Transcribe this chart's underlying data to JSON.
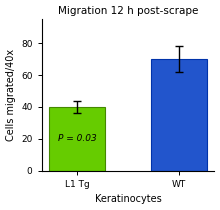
{
  "title": "Migration 12 h post-scrape",
  "xlabel": "Keratinocytes",
  "ylabel": "Cells migrated/40x",
  "categories": [
    "L1 Tg",
    "WT"
  ],
  "values": [
    40,
    70
  ],
  "errors": [
    4,
    8
  ],
  "bar_colors": [
    "#66cc00",
    "#2255cc"
  ],
  "bar_edgecolors": [
    "#448800",
    "#0033aa"
  ],
  "pvalue_text": "P = 0.03",
  "ylim": [
    0,
    95
  ],
  "yticks": [
    0,
    20,
    40,
    60,
    80
  ],
  "figsize": [
    2.2,
    2.1
  ],
  "dpi": 100,
  "title_fontsize": 7.5,
  "axis_fontsize": 7,
  "tick_fontsize": 6.5,
  "pval_fontsize": 6.5,
  "background_color": "#ffffff"
}
